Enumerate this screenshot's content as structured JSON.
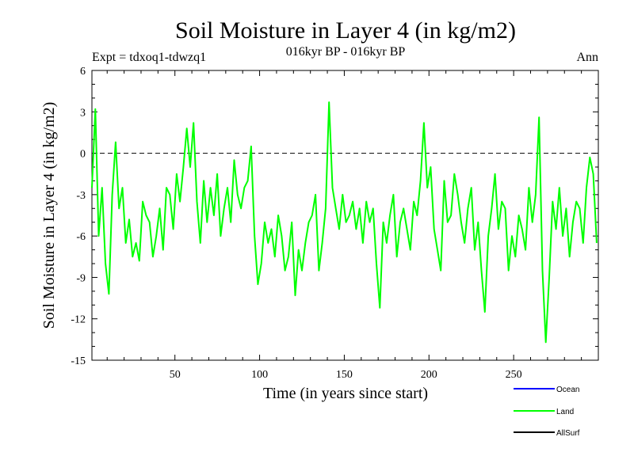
{
  "chart_data": {
    "type": "line",
    "title": "Soil Moisture in Layer 4 (in kg/m2)",
    "subtitle": "016kyr BP - 016kyr BP",
    "left_label": "Expt = tdxoq1-tdwzq1",
    "right_label": "Ann",
    "xlabel": "Time (in years since start)",
    "ylabel": "Soil Moisture in Layer 4 (in kg/m2)",
    "xlim": [
      1,
      300
    ],
    "ylim": [
      -15,
      6
    ],
    "xticks": [
      50,
      100,
      150,
      200,
      250
    ],
    "yticks": [
      6,
      3,
      0,
      -3,
      -6,
      -9,
      -12,
      -15
    ],
    "zero_line": true,
    "legend": [
      {
        "name": "Ocean",
        "color": "#0000ff"
      },
      {
        "name": "Land",
        "color": "#00ff00"
      },
      {
        "name": "AllSurf",
        "color": "#000000"
      }
    ],
    "series": [
      {
        "name": "Land",
        "color": "#00ff00",
        "x": [
          1,
          3,
          5,
          7,
          9,
          11,
          13,
          15,
          17,
          19,
          21,
          23,
          25,
          27,
          29,
          31,
          33,
          35,
          37,
          39,
          41,
          43,
          45,
          47,
          49,
          51,
          53,
          55,
          57,
          59,
          61,
          63,
          65,
          67,
          69,
          71,
          73,
          75,
          77,
          79,
          81,
          83,
          85,
          87,
          89,
          91,
          93,
          95,
          97,
          99,
          101,
          103,
          105,
          107,
          109,
          111,
          113,
          115,
          117,
          119,
          121,
          123,
          125,
          127,
          129,
          131,
          133,
          135,
          137,
          139,
          141,
          143,
          145,
          147,
          149,
          151,
          153,
          155,
          157,
          159,
          161,
          163,
          165,
          167,
          169,
          171,
          173,
          175,
          177,
          179,
          181,
          183,
          185,
          187,
          189,
          191,
          193,
          195,
          197,
          199,
          201,
          203,
          205,
          207,
          209,
          211,
          213,
          215,
          217,
          219,
          221,
          223,
          225,
          227,
          229,
          231,
          233,
          235,
          237,
          239,
          241,
          243,
          245,
          247,
          249,
          251,
          253,
          255,
          257,
          259,
          261,
          263,
          265,
          267,
          269,
          271,
          273,
          275,
          277,
          279,
          281,
          283,
          285,
          287,
          289,
          291,
          293,
          295,
          297,
          299
        ],
        "values": [
          -2.5,
          3.2,
          -6.0,
          -2.5,
          -8.0,
          -10.2,
          -3.0,
          0.8,
          -4.0,
          -2.5,
          -6.5,
          -4.8,
          -7.5,
          -6.5,
          -7.8,
          -3.5,
          -4.5,
          -5.0,
          -7.5,
          -6.0,
          -4.0,
          -7.0,
          -2.5,
          -3.0,
          -5.5,
          -1.5,
          -3.5,
          -1.0,
          1.8,
          -1.0,
          2.2,
          -3.5,
          -6.5,
          -2.0,
          -5.0,
          -2.5,
          -4.5,
          -1.5,
          -6.0,
          -4.0,
          -2.5,
          -5.0,
          -0.5,
          -3.0,
          -4.0,
          -2.5,
          -2.0,
          0.5,
          -6.0,
          -9.5,
          -8.0,
          -5.0,
          -6.5,
          -5.5,
          -7.5,
          -4.5,
          -6.0,
          -8.5,
          -7.5,
          -5.0,
          -10.3,
          -7.0,
          -8.5,
          -6.5,
          -5.0,
          -4.5,
          -3.0,
          -8.5,
          -6.5,
          -4.0,
          3.7,
          -2.5,
          -4.0,
          -5.5,
          -3.0,
          -5.0,
          -4.5,
          -3.5,
          -5.5,
          -4.0,
          -6.5,
          -3.5,
          -5.0,
          -4.0,
          -8.0,
          -11.2,
          -5.0,
          -6.5,
          -4.5,
          -3.0,
          -7.5,
          -5.0,
          -4.0,
          -5.5,
          -7.0,
          -3.5,
          -4.5,
          -2.0,
          2.2,
          -2.5,
          -1.0,
          -5.5,
          -7.0,
          -8.5,
          -2.0,
          -5.0,
          -4.5,
          -1.5,
          -3.0,
          -5.0,
          -6.5,
          -4.0,
          -2.5,
          -7.0,
          -5.0,
          -8.5,
          -11.5,
          -6.0,
          -4.0,
          -1.5,
          -5.5,
          -3.5,
          -4.0,
          -8.5,
          -6.0,
          -7.5,
          -4.5,
          -5.5,
          -7.0,
          -2.5,
          -5.0,
          -3.0,
          2.6,
          -8.5,
          -13.7,
          -9.0,
          -3.5,
          -5.5,
          -2.5,
          -6.0,
          -4.0,
          -7.5,
          -5.0,
          -3.5,
          -4.0,
          -6.5,
          -2.5,
          -0.3,
          -1.5,
          -6.5
        ]
      }
    ]
  }
}
